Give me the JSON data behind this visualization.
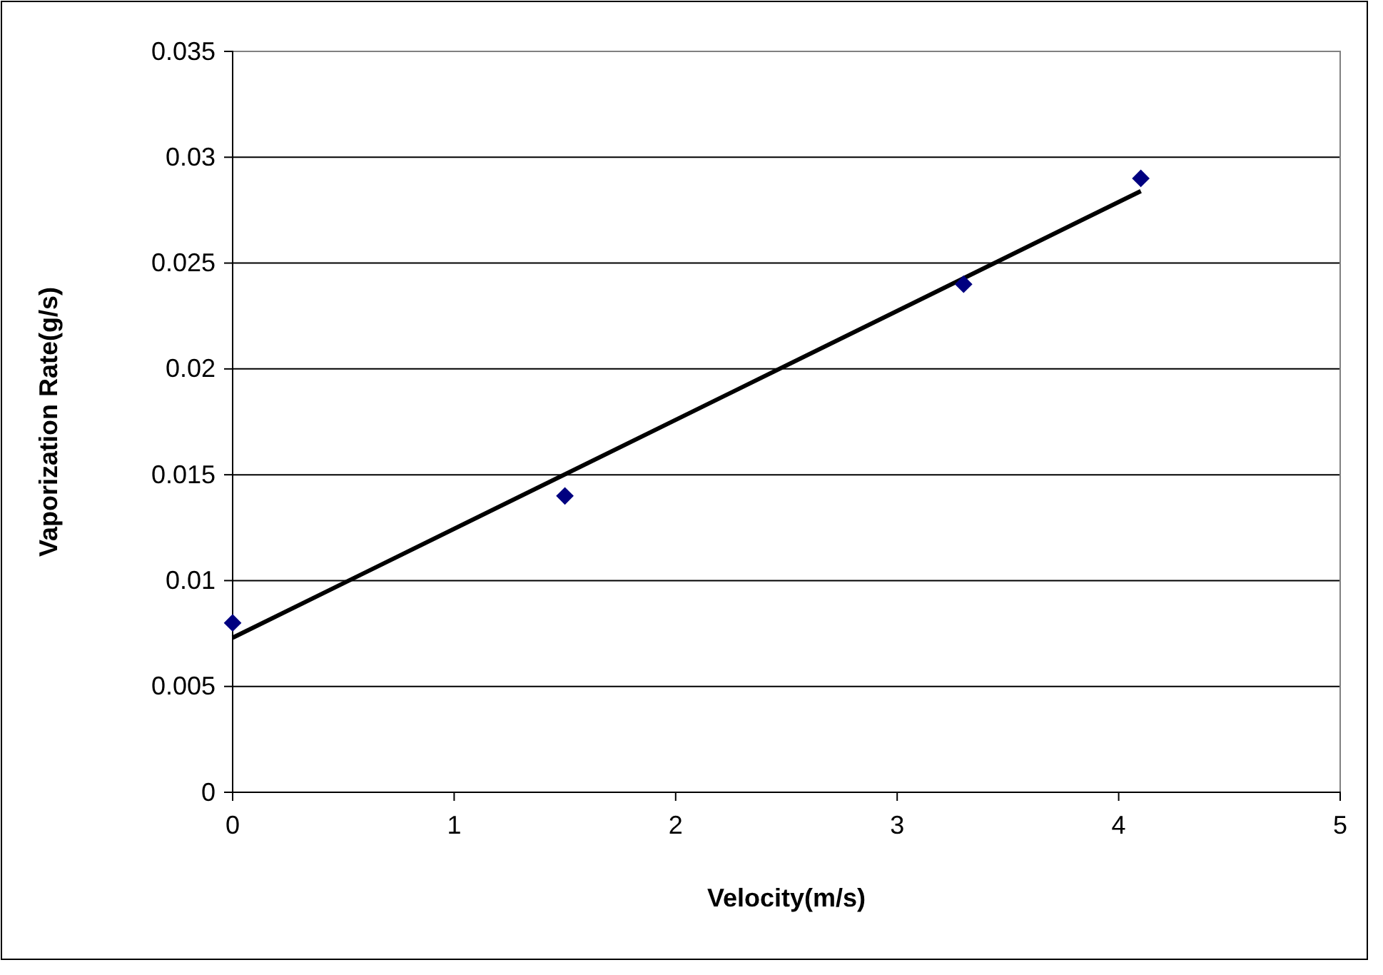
{
  "chart_data": {
    "type": "scatter",
    "xlabel": "Velocity(m/s)",
    "ylabel": "Vaporization Rate(g/s)",
    "xlim": [
      0,
      5
    ],
    "xticks": [
      0,
      1,
      2,
      3,
      4,
      5
    ],
    "ylim": [
      0,
      0.035
    ],
    "yticks": [
      0,
      0.005,
      0.01,
      0.015,
      0.02,
      0.025,
      0.03,
      0.035
    ],
    "grid": "y",
    "marker": "diamond",
    "series": [
      {
        "color": "#000080",
        "x": [
          0,
          1.5,
          3.3,
          4.1
        ],
        "values": [
          0.008,
          0.014,
          0.024,
          0.029
        ]
      },
      {
        "type": "line",
        "color": "#000000",
        "x": [
          0,
          4.1
        ],
        "values": [
          0.0073,
          0.0284
        ],
        "line_style": "solid",
        "marker": "none"
      }
    ]
  }
}
